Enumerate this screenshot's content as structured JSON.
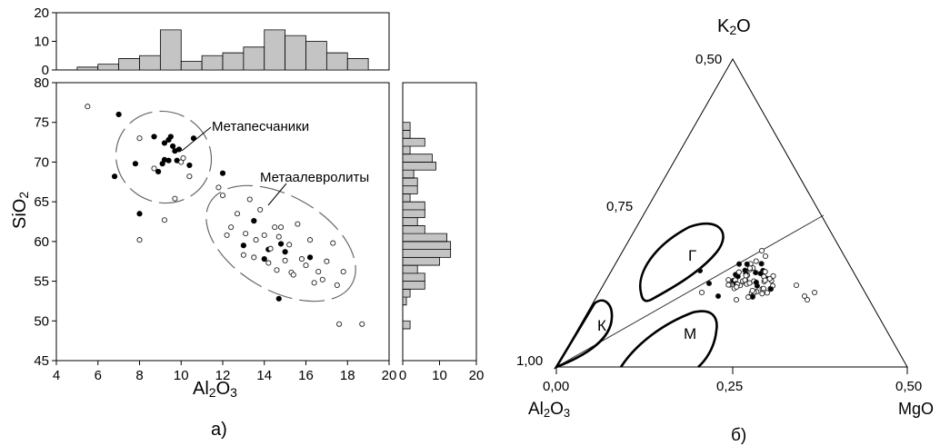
{
  "chart_data": [
    {
      "type": "scatter",
      "panel_label": "а)",
      "xlabel": "Al2O3",
      "ylabel": "SiO2",
      "xlim": [
        4,
        20
      ],
      "ylim": [
        45,
        80
      ],
      "xticks": [
        "4",
        "6",
        "8",
        "10",
        "12",
        "14",
        "16",
        "18",
        "20"
      ],
      "yticks": [
        "45",
        "50",
        "55",
        "60",
        "65",
        "70",
        "75",
        "80"
      ],
      "annotations": [
        "Метапесчаники",
        "Метаалевролиты"
      ],
      "series": [
        {
          "marker": "filled",
          "x": [
            7.0,
            6.8,
            7.8,
            8.0,
            8.7,
            8.9,
            9.2,
            9.2,
            9.4,
            9.5,
            9.6,
            9.7,
            9.8,
            9.9,
            9.4,
            9.1,
            10.4,
            10.6,
            12.0,
            13.0,
            13.5,
            14.0,
            14.2,
            14.8,
            15.0,
            16.2,
            14.7
          ],
          "y": [
            76.0,
            68.2,
            69.8,
            63.5,
            73.2,
            68.8,
            72.4,
            70.3,
            72.8,
            73.2,
            72.0,
            71.4,
            70.2,
            71.6,
            70.2,
            69.8,
            69.6,
            73.0,
            68.6,
            59.5,
            62.6,
            57.8,
            59.0,
            59.7,
            58.7,
            58.0,
            52.8
          ]
        },
        {
          "marker": "open",
          "x": [
            5.5,
            8.0,
            8.0,
            8.7,
            9.2,
            9.7,
            10.0,
            10.1,
            10.4,
            12.2,
            12.4,
            12.7,
            13.0,
            13.1,
            13.3,
            13.5,
            13.6,
            13.8,
            14.0,
            14.2,
            14.3,
            14.5,
            14.6,
            14.7,
            14.8,
            15.0,
            15.2,
            15.3,
            15.4,
            15.6,
            15.8,
            16.0,
            16.2,
            16.4,
            16.6,
            16.8,
            17.0,
            17.3,
            17.5,
            17.8,
            17.6,
            18.7,
            11.8,
            12.0
          ],
          "y": [
            77.0,
            73.0,
            60.2,
            69.2,
            62.7,
            65.4,
            70.0,
            70.5,
            68.2,
            60.8,
            61.8,
            63.5,
            58.3,
            61.0,
            65.3,
            58.0,
            60.2,
            64.0,
            60.8,
            57.3,
            59.1,
            61.8,
            56.4,
            60.6,
            61.8,
            57.6,
            59.6,
            56.1,
            55.8,
            62.2,
            57.8,
            57.0,
            60.2,
            54.8,
            56.2,
            55.2,
            57.5,
            59.8,
            54.5,
            56.2,
            49.6,
            49.6,
            66.8,
            65.8
          ]
        }
      ]
    },
    {
      "type": "bar",
      "panel_label": "",
      "categories": [
        5.5,
        6.5,
        7.5,
        8.5,
        9.5,
        10.5,
        11.5,
        12.5,
        13.5,
        14.5,
        15.5,
        16.5,
        17.5,
        18.5
      ],
      "values": [
        1,
        2,
        4,
        5,
        14,
        3,
        5,
        6,
        8,
        14,
        12,
        10,
        6,
        4
      ],
      "xlim": [
        4,
        20
      ],
      "ylim": [
        0,
        20
      ],
      "yticks": [
        "0",
        "10",
        "20"
      ],
      "note": "Al2O3 histogram (top marginal)"
    },
    {
      "type": "bar",
      "orientation": "horizontal",
      "categories": [
        49.5,
        50.5,
        51.5,
        52.5,
        53.5,
        54.5,
        55.5,
        56.5,
        57.5,
        58.5,
        59.5,
        60.5,
        61.5,
        62.5,
        63.5,
        64.5,
        65.5,
        66.5,
        67.5,
        68.5,
        69.5,
        70.5,
        71.5,
        72.5,
        73.5,
        74.5
      ],
      "values": [
        2,
        0,
        0,
        1,
        2,
        6,
        6,
        4,
        10,
        13,
        13,
        12,
        6,
        4,
        6,
        6,
        2,
        4,
        4,
        3,
        9,
        8,
        2,
        6,
        2,
        2
      ],
      "xlim": [
        0,
        20
      ],
      "ylim": [
        45,
        80
      ],
      "xticks": [
        "0",
        "10",
        "20"
      ]
    },
    {
      "type": "ternary",
      "panel_label": "б)",
      "vertex_labels": {
        "top": "K2O",
        "left": "Al2O3",
        "right": "MgO"
      },
      "tick_labels": {
        "apex": "0,50",
        "side_mid": "0,75",
        "corner": "1,00",
        "base_left": "0,00",
        "base_mid": "0,25",
        "base_right": "0,50"
      },
      "fields": [
        "К",
        "Г",
        "М"
      ]
    }
  ]
}
